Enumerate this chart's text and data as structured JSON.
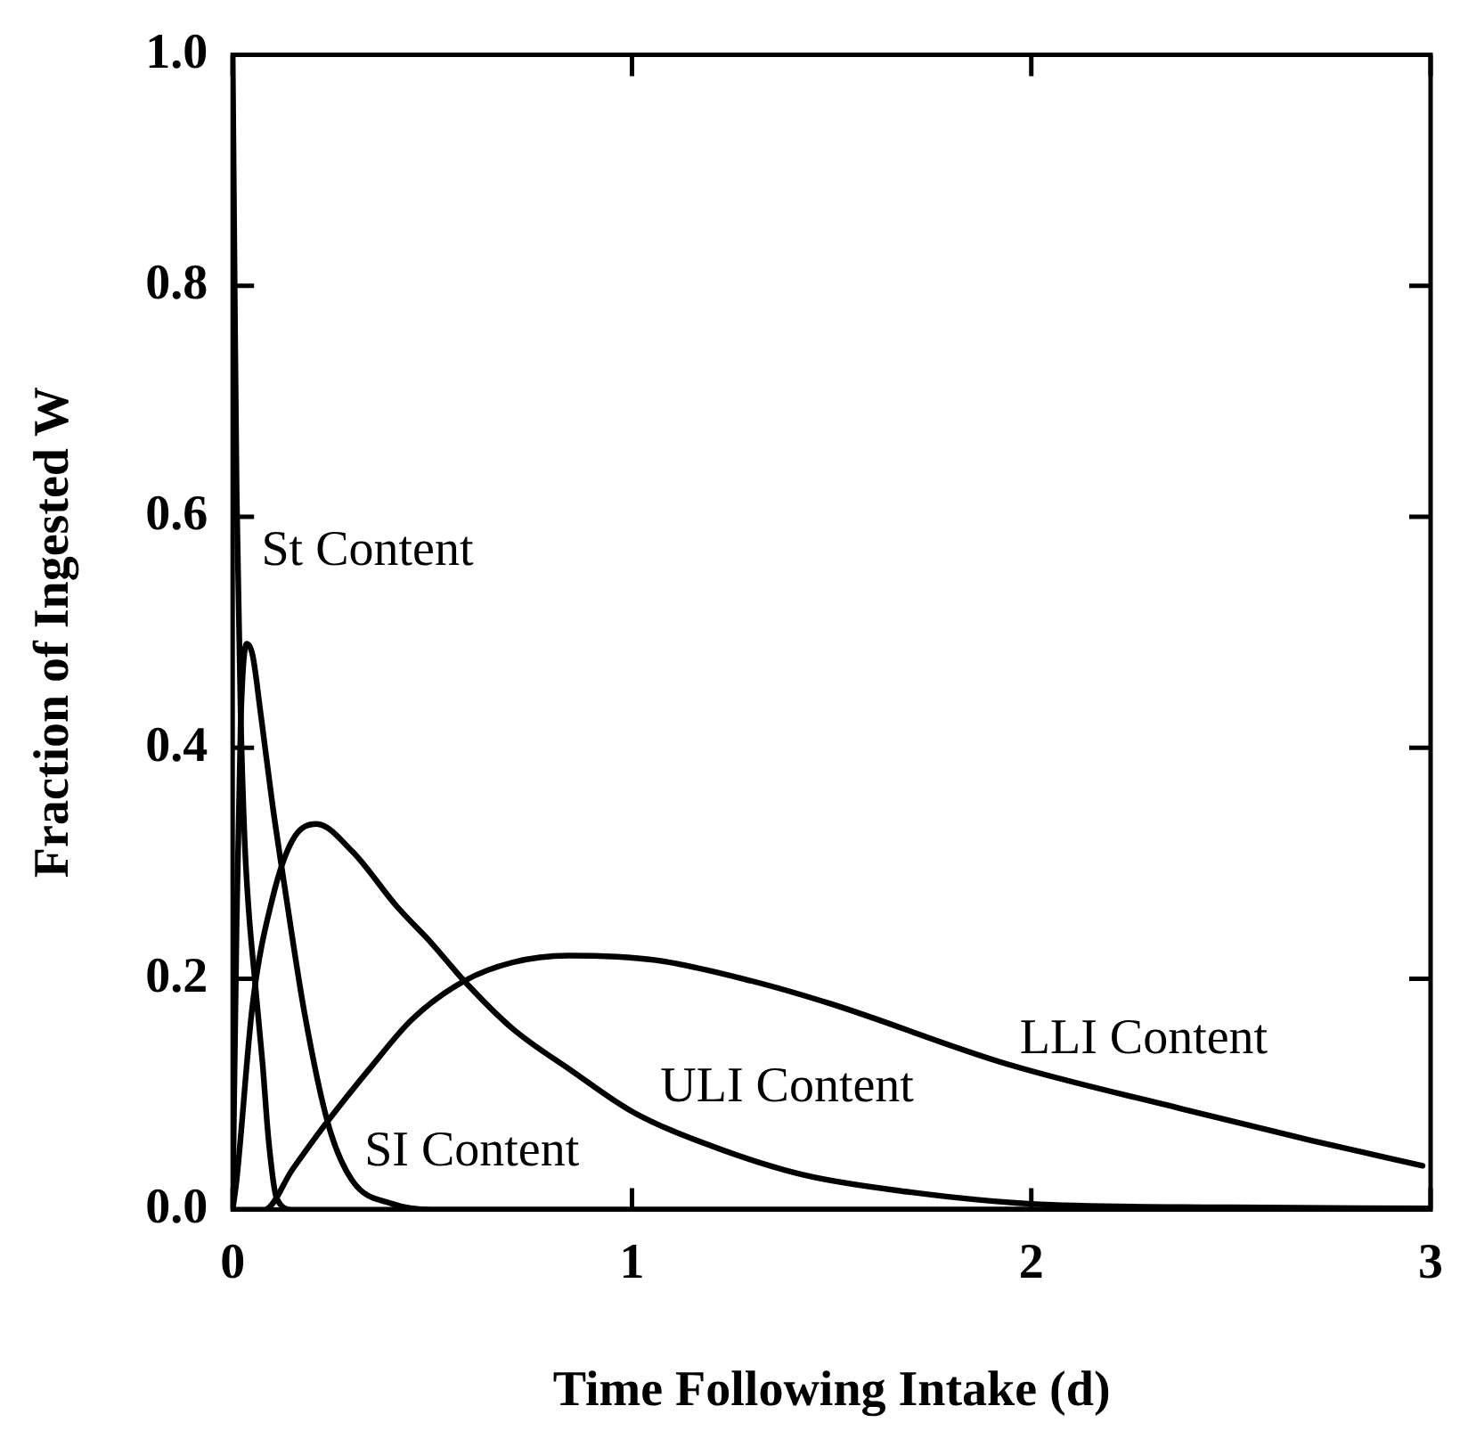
{
  "chart_data": {
    "type": "line",
    "xlabel": "Time Following Intake (d)",
    "ylabel": "Fraction of Ingested W",
    "xlim": [
      0,
      3
    ],
    "ylim": [
      0,
      1
    ],
    "xticks": [
      0,
      1,
      2,
      3
    ],
    "yticks": [
      {
        "value": 0,
        "label": "0.0"
      },
      {
        "value": 0.2,
        "label": "0.2"
      },
      {
        "value": 0.4,
        "label": "0.4"
      },
      {
        "value": 0.6,
        "label": "0.6"
      },
      {
        "value": 0.8,
        "label": "0.8"
      },
      {
        "value": 1,
        "label": "1.0"
      }
    ],
    "grid": false,
    "legend": false,
    "marker": "none",
    "line_style": "solid",
    "series": [
      {
        "color": "#000000",
        "x": [
          0,
          0.005,
          0.01,
          0.02,
          0.03,
          0.04,
          0.053,
          0.075,
          0.09,
          0.11,
          0.15,
          0.3,
          3
        ],
        "values": [
          1,
          0.8,
          0.62,
          0.43,
          0.32,
          0.26,
          0.208,
          0.126,
          0.06,
          0.01,
          0,
          0,
          0
        ]
      },
      {
        "color": "#000000",
        "x": [
          0,
          0.01,
          0.02,
          0.035,
          0.05,
          0.07,
          0.1,
          0.13,
          0.18,
          0.24,
          0.3,
          0.4,
          0.5,
          3
        ],
        "values": [
          0,
          0.25,
          0.42,
          0.49,
          0.48,
          0.43,
          0.35,
          0.28,
          0.17,
          0.073,
          0.025,
          0.005,
          0,
          0
        ]
      },
      {
        "color": "#000000",
        "x": [
          0,
          0.01,
          0.05,
          0.1,
          0.15,
          0.21,
          0.3,
          0.41,
          0.5,
          0.58,
          0.7,
          0.85,
          1,
          1.2,
          1.43,
          1.7,
          2,
          2.5,
          3
        ],
        "values": [
          0,
          0.026,
          0.178,
          0.27,
          0.32,
          0.334,
          0.31,
          0.263,
          0.23,
          0.198,
          0.157,
          0.12,
          0.085,
          0.055,
          0.03,
          0.015,
          0.005,
          0.002,
          0.001
        ]
      },
      {
        "color": "#000000",
        "x": [
          0,
          0.08,
          0.15,
          0.23,
          0.35,
          0.45,
          0.58,
          0.7,
          0.84,
          1.06,
          1.3,
          1.5,
          1.94,
          2.38,
          2.7,
          2.98
        ],
        "values": [
          0,
          0,
          0.035,
          0.073,
          0.125,
          0.165,
          0.198,
          0.214,
          0.22,
          0.216,
          0.198,
          0.178,
          0.126,
          0.087,
          0.06,
          0.038
        ]
      }
    ],
    "annotations": [
      "St Content",
      "SI Content",
      "ULI Content",
      "LLI Content"
    ]
  }
}
